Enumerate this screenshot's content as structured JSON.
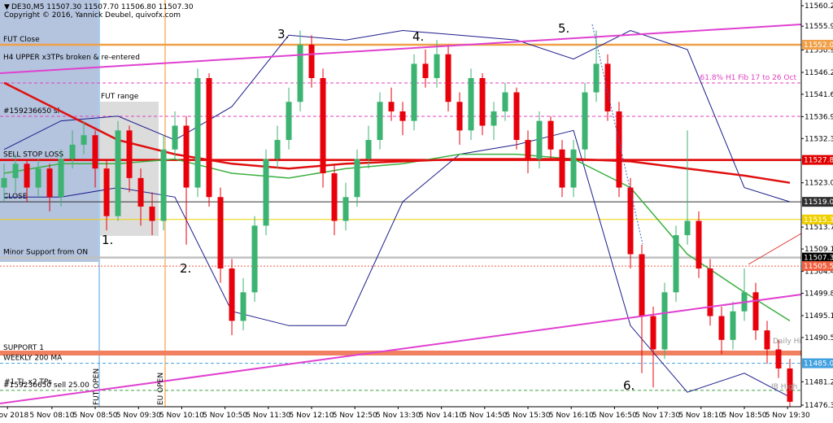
{
  "chart_data": {
    "type": "candlestick",
    "title": "DE30,M5  11507.30 11507.70 11506.80 11507.30",
    "subtitle": "Copyright © 2016, Yannick Deubel, quivofx.com",
    "ylim": [
      11475.96,
      11561.4
    ],
    "xlim": [
      -0.36,
      70
    ],
    "yticks": [
      {
        "value": 11560.2,
        "label": "11560.20"
      },
      {
        "value": 11555.9,
        "label": "11555.90"
      },
      {
        "value": 11550.9,
        "label": "11550.90"
      },
      {
        "value": 11546.2,
        "label": "11546.20"
      },
      {
        "value": 11541.6,
        "label": "11541.60"
      },
      {
        "value": 11536.9,
        "label": "11536.90"
      },
      {
        "value": 11532.3,
        "label": "11532.30"
      },
      {
        "value": 11523,
        "label": "11523.00"
      },
      {
        "value": 11513.7,
        "label": "11513.70"
      },
      {
        "value": 11509.1,
        "label": "11509.10"
      },
      {
        "value": 11504.4,
        "label": "11504.40"
      },
      {
        "value": 11499.8,
        "label": "11499.80"
      },
      {
        "value": 11495.1,
        "label": "11495.10"
      },
      {
        "value": 11490.5,
        "label": "11490.50"
      },
      {
        "value": 11481.2,
        "label": "11481.20"
      },
      {
        "value": 11476.3,
        "label": "11476.30"
      }
    ],
    "xticks": [
      {
        "value": 0.3,
        "label": "5 Nov 2018"
      },
      {
        "value": 4.2,
        "label": "5 Nov 08:10"
      },
      {
        "value": 8.0,
        "label": "5 Nov 08:50"
      },
      {
        "value": 11.8,
        "label": "5 Nov 09:30"
      },
      {
        "value": 15.6,
        "label": "5 Nov 10:10"
      },
      {
        "value": 19.4,
        "label": "5 Nov 10:50"
      },
      {
        "value": 23.2,
        "label": "5 Nov 11:30"
      },
      {
        "value": 27.0,
        "label": "5 Nov 12:10"
      },
      {
        "value": 30.8,
        "label": "5 Nov 12:50"
      },
      {
        "value": 34.6,
        "label": "5 Nov 13:30"
      },
      {
        "value": 38.4,
        "label": "5 Nov 14:10"
      },
      {
        "value": 42.2,
        "label": "5 Nov 14:50"
      },
      {
        "value": 46.0,
        "label": "5 Nov 15:30"
      },
      {
        "value": 49.8,
        "label": "5 Nov 16:10"
      },
      {
        "value": 53.6,
        "label": "5 Nov 16:50"
      },
      {
        "value": 57.4,
        "label": "5 Nov 17:30"
      },
      {
        "value": 61.2,
        "label": "5 Nov 18:10"
      },
      {
        "value": 65.0,
        "label": "5 Nov 18:50"
      },
      {
        "value": 68.8,
        "label": "5 Nov 19:30"
      }
    ],
    "up_color": "#3cb371",
    "down_color": "#e8000b",
    "candles": [
      [
        11522,
        11527,
        11519,
        11524
      ],
      [
        11524,
        11529,
        11521,
        11527
      ],
      [
        11527,
        11528,
        11519,
        11522
      ],
      [
        11522,
        11528,
        11520,
        11526
      ],
      [
        11526,
        11527,
        11517,
        11520
      ],
      [
        11520,
        11530,
        11518,
        11528
      ],
      [
        11528,
        11534,
        11526,
        11531
      ],
      [
        11531,
        11536,
        11529,
        11533
      ],
      [
        11533,
        11534,
        11522,
        11526
      ],
      [
        11526,
        11528,
        11513,
        11516
      ],
      [
        11516,
        11536,
        11515,
        11534
      ],
      [
        11534,
        11535,
        11521,
        11524
      ],
      [
        11524,
        11526,
        11514,
        11518
      ],
      [
        11518,
        11521,
        11512,
        11515
      ],
      [
        11515,
        11533,
        11513,
        11530
      ],
      [
        11530,
        11538,
        11528,
        11535
      ],
      [
        11535,
        11537,
        11510,
        11522
      ],
      [
        11522,
        11547,
        11520,
        11545
      ],
      [
        11545,
        11546,
        11518,
        11520
      ],
      [
        11520,
        11522,
        11502,
        11505
      ],
      [
        11505,
        11507,
        11491,
        11494
      ],
      [
        11494,
        11503,
        11492,
        11500
      ],
      [
        11500,
        11516,
        11498,
        11514
      ],
      [
        11514,
        11530,
        11512,
        11528
      ],
      [
        11528,
        11535,
        11526,
        11532
      ],
      [
        11532,
        11543,
        11530,
        11540
      ],
      [
        11540,
        11555,
        11538,
        11552
      ],
      [
        11552,
        11554,
        11543,
        11545
      ],
      [
        11545,
        11547,
        11522,
        11525
      ],
      [
        11525,
        11527,
        11512,
        11515
      ],
      [
        11515,
        11523,
        11513,
        11520
      ],
      [
        11520,
        11530,
        11518,
        11528
      ],
      [
        11528,
        11535,
        11526,
        11532
      ],
      [
        11532,
        11542,
        11530,
        11540
      ],
      [
        11540,
        11543,
        11536,
        11538
      ],
      [
        11538,
        11540,
        11533,
        11536
      ],
      [
        11536,
        11550,
        11534,
        11548
      ],
      [
        11548,
        11551,
        11543,
        11545
      ],
      [
        11545,
        11553,
        11543,
        11550
      ],
      [
        11550,
        11552,
        11538,
        11540
      ],
      [
        11540,
        11542,
        11531,
        11534
      ],
      [
        11534,
        11547,
        11532,
        11545
      ],
      [
        11545,
        11546,
        11533,
        11535
      ],
      [
        11535,
        11540,
        11532,
        11538
      ],
      [
        11538,
        11544,
        11536,
        11542
      ],
      [
        11542,
        11543,
        11530,
        11532
      ],
      [
        11532,
        11534,
        11525,
        11528
      ],
      [
        11528,
        11538,
        11526,
        11536
      ],
      [
        11536,
        11537,
        11528,
        11530
      ],
      [
        11530,
        11532,
        11520,
        11522
      ],
      [
        11522,
        11532,
        11520,
        11530
      ],
      [
        11530,
        11544,
        11528,
        11542
      ],
      [
        11542,
        11555,
        11540,
        11548
      ],
      [
        11548,
        11550,
        11536,
        11538
      ],
      [
        11538,
        11540,
        11520,
        11522
      ],
      [
        11522,
        11524,
        11505,
        11508
      ],
      [
        11508,
        11510,
        11483,
        11495
      ],
      [
        11495,
        11497,
        11480,
        11488
      ],
      [
        11488,
        11502,
        11486,
        11500
      ],
      [
        11500,
        11514,
        11498,
        11512
      ],
      [
        11512,
        11534,
        11510,
        11515
      ],
      [
        11515,
        11517,
        11503,
        11505
      ],
      [
        11505,
        11507,
        11493,
        11495
      ],
      [
        11495,
        11497,
        11487,
        11490
      ],
      [
        11490,
        11498,
        11488,
        11496
      ],
      [
        11496,
        11505,
        11494,
        11500
      ],
      [
        11500,
        11502,
        11490,
        11492
      ],
      [
        11492,
        11494,
        11485,
        11488
      ],
      [
        11488,
        11490,
        11482,
        11484
      ],
      [
        11484,
        11486,
        11476,
        11477
      ]
    ],
    "indicator_x": [
      0,
      5,
      10,
      15,
      20,
      25,
      30,
      35,
      40,
      45,
      50,
      55,
      60,
      65,
      69
    ],
    "indicators": [
      {
        "color": "#1c1c8c",
        "style": "thin",
        "values": [
          11530,
          11536,
          11537,
          11532,
          11539,
          11554,
          11553,
          11555,
          11554,
          11553,
          11549,
          11555,
          11551,
          11522,
          11519
        ]
      },
      {
        "color": "#1c1c8c",
        "style": "thin",
        "values": [
          11520,
          11520,
          11522,
          11520,
          11496,
          11493,
          11493,
          11519,
          11529,
          11531,
          11534,
          11493,
          11479,
          11483,
          11478
        ]
      },
      {
        "color": "#3cb040",
        "style": "medium",
        "values": [
          11525,
          11527,
          11527,
          11528,
          11525,
          11524,
          11526,
          11527,
          11529,
          11529,
          11528,
          11522,
          11508,
          11500,
          11494
        ]
      },
      {
        "color": "#e01010",
        "style": "thick",
        "values": [
          11544,
          11538,
          11532,
          11529,
          11527,
          11526,
          11527,
          11527.5,
          11528,
          11528,
          11528,
          11527.5,
          11526,
          11524.5,
          11523
        ]
      }
    ],
    "levels": [
      {
        "value": 11552,
        "label": "11552.00",
        "name": "FUT Close",
        "color": "#f0a048",
        "style": "thick"
      },
      {
        "value": 11543.97,
        "name": "61.8%   H1 Fib 17 to 26 Oct",
        "color": "#e040c0",
        "style": "dashed",
        "name_side": "right"
      },
      {
        "value": 11536.96,
        "name": "#159236650 sl",
        "color": "#e040c0",
        "style": "dashed"
      },
      {
        "value": 11527.81,
        "label": "11527.81",
        "name": "SELL STOP LOSS",
        "color": "#e00000",
        "style": "thick"
      },
      {
        "value": 11519,
        "label": "11519.00",
        "name": "CLOSE",
        "color": "#303030",
        "style": "solid"
      },
      {
        "value": 11515.3,
        "label": "11515.30",
        "color": "#f0d000",
        "style": "solid"
      },
      {
        "value": 11507.3,
        "label": "11507.30",
        "name": "Minor Support from ON",
        "color": "#c0c0c0",
        "style": "thick",
        "label_color": "#000000"
      },
      {
        "value": 11505.51,
        "label": "11505.51",
        "color": "#f06040",
        "style": "dotted"
      },
      {
        "value": 11487.23,
        "name": "SUPPORT 1",
        "color": "#f08060",
        "style": "band"
      },
      {
        "value": 11485.09,
        "label": "11485.09",
        "name": "WEEKLY 200 MA",
        "color": "#40a0e0",
        "style": "dashed"
      },
      {
        "value": 11479.4,
        "name": "#159236650 sell 25.00",
        "color": "#40a040",
        "style": "dashed"
      }
    ],
    "annotations": {
      "trend": "H4 UPPER x3TPs broken & re-entered",
      "range": "FUT range",
      "tl": "#1 TL x2 TPs",
      "daily_high": "Daily High",
      "ib_high": "IB High",
      "fut_open": "FUT OPEN",
      "eu_open": "EU OPEN",
      "n1": "1.",
      "n2": "2.",
      "n3": "3.",
      "n4": "4.",
      "n5": "5.",
      "n6": "6."
    }
  }
}
